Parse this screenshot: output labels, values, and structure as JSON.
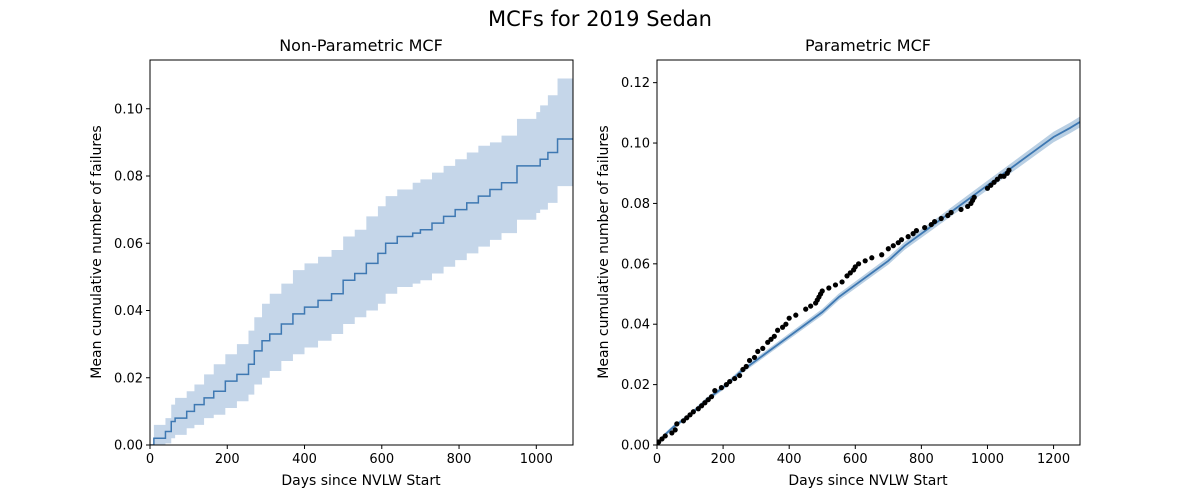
{
  "figure": {
    "title": "MCFs for 2019 Sedan"
  },
  "chart_data": [
    {
      "type": "line",
      "title": "Non-Parametric MCF",
      "xlabel": "Days since NVLW Start",
      "ylabel": "Mean cumulative number of failures",
      "xlim": [
        0,
        1095
      ],
      "ylim": [
        0,
        0.1145
      ],
      "xticks": [
        0,
        200,
        400,
        600,
        800,
        1000
      ],
      "xtick_labels": [
        "0",
        "200",
        "400",
        "600",
        "800",
        "1000"
      ],
      "yticks": [
        0,
        0.02,
        0.04,
        0.06,
        0.08,
        0.1
      ],
      "ytick_labels": [
        "0.00",
        "0.02",
        "0.04",
        "0.06",
        "0.08",
        "0.10"
      ],
      "grid": false,
      "colors": {
        "line": "#3e78b2",
        "band": "#c5d6e9"
      },
      "series": [
        {
          "style": "step",
          "x": [
            0,
            10,
            40,
            55,
            65,
            95,
            115,
            140,
            165,
            195,
            225,
            255,
            270,
            290,
            310,
            340,
            370,
            400,
            435,
            470,
            500,
            530,
            560,
            590,
            610,
            640,
            680,
            700,
            730,
            760,
            790,
            820,
            850,
            880,
            910,
            950,
            1000,
            1010,
            1030,
            1055,
            1095
          ],
          "y": [
            0,
            0.002,
            0.004,
            0.007,
            0.008,
            0.01,
            0.012,
            0.014,
            0.016,
            0.019,
            0.021,
            0.024,
            0.028,
            0.031,
            0.033,
            0.036,
            0.039,
            0.041,
            0.043,
            0.045,
            0.049,
            0.051,
            0.054,
            0.057,
            0.06,
            0.062,
            0.063,
            0.064,
            0.066,
            0.068,
            0.07,
            0.072,
            0.074,
            0.076,
            0.078,
            0.083,
            0.083,
            0.085,
            0.087,
            0.091,
            0.091
          ],
          "lower": [
            0,
            0,
            0.0005,
            0.002,
            0.003,
            0.005,
            0.006,
            0.008,
            0.009,
            0.011,
            0.013,
            0.015,
            0.018,
            0.02,
            0.022,
            0.025,
            0.027,
            0.029,
            0.031,
            0.033,
            0.036,
            0.038,
            0.04,
            0.042,
            0.045,
            0.047,
            0.048,
            0.049,
            0.051,
            0.053,
            0.055,
            0.057,
            0.059,
            0.061,
            0.063,
            0.067,
            0.069,
            0.07,
            0.072,
            0.077,
            0.077
          ],
          "upper": [
            0,
            0.006,
            0.008,
            0.012,
            0.014,
            0.016,
            0.018,
            0.021,
            0.024,
            0.027,
            0.03,
            0.034,
            0.038,
            0.042,
            0.045,
            0.048,
            0.052,
            0.054,
            0.056,
            0.058,
            0.062,
            0.064,
            0.068,
            0.071,
            0.074,
            0.076,
            0.078,
            0.079,
            0.081,
            0.083,
            0.085,
            0.087,
            0.089,
            0.09,
            0.092,
            0.097,
            0.099,
            0.101,
            0.104,
            0.109,
            0.109
          ]
        }
      ]
    },
    {
      "type": "line",
      "title": "Parametric MCF",
      "xlabel": "Days since NVLW Start",
      "ylabel": "Mean cumulative number of failures",
      "xlim": [
        0,
        1280
      ],
      "ylim": [
        0,
        0.1275
      ],
      "xticks": [
        0,
        200,
        400,
        600,
        800,
        1000,
        1200
      ],
      "xtick_labels": [
        "0",
        "200",
        "400",
        "600",
        "800",
        "1000",
        "1200"
      ],
      "yticks": [
        0,
        0.02,
        0.04,
        0.06,
        0.08,
        0.1,
        0.12
      ],
      "ytick_labels": [
        "0.00",
        "0.02",
        "0.04",
        "0.06",
        "0.08",
        "0.10",
        "0.12"
      ],
      "grid": false,
      "colors": {
        "line": "#3e78b2",
        "band": "#a8c3dc",
        "points": "#000000"
      },
      "series": [
        {
          "style": "line",
          "x": [
            0,
            20,
            50,
            100,
            150,
            200,
            250,
            300,
            350,
            400,
            450,
            500,
            550,
            600,
            650,
            700,
            750,
            800,
            850,
            900,
            950,
            1000,
            1050,
            1100,
            1150,
            1200,
            1250,
            1280
          ],
          "y": [
            0,
            0.003,
            0.006,
            0.01,
            0.015,
            0.019,
            0.024,
            0.028,
            0.032,
            0.036,
            0.04,
            0.044,
            0.049,
            0.053,
            0.057,
            0.061,
            0.066,
            0.07,
            0.074,
            0.078,
            0.082,
            0.086,
            0.09,
            0.094,
            0.098,
            0.102,
            0.105,
            0.107
          ]
        },
        {
          "style": "points",
          "x": [
            5,
            15,
            25,
            45,
            55,
            60,
            80,
            90,
            100,
            110,
            125,
            135,
            145,
            155,
            165,
            175,
            195,
            210,
            220,
            235,
            250,
            260,
            270,
            280,
            295,
            305,
            320,
            335,
            345,
            355,
            365,
            380,
            390,
            400,
            420,
            450,
            465,
            480,
            485,
            490,
            495,
            500,
            520,
            540,
            560,
            575,
            585,
            595,
            600,
            610,
            630,
            650,
            680,
            700,
            715,
            730,
            740,
            760,
            775,
            785,
            810,
            830,
            840,
            860,
            880,
            890,
            920,
            940,
            950,
            955,
            960,
            1000,
            1010,
            1020,
            1030,
            1040,
            1050,
            1060,
            1065
          ],
          "y": [
            0.001,
            0.002,
            0.003,
            0.004,
            0.005,
            0.007,
            0.008,
            0.009,
            0.01,
            0.011,
            0.012,
            0.013,
            0.014,
            0.015,
            0.016,
            0.018,
            0.019,
            0.02,
            0.021,
            0.022,
            0.023,
            0.025,
            0.026,
            0.028,
            0.029,
            0.031,
            0.032,
            0.034,
            0.035,
            0.036,
            0.038,
            0.039,
            0.04,
            0.042,
            0.043,
            0.045,
            0.046,
            0.047,
            0.048,
            0.049,
            0.05,
            0.051,
            0.052,
            0.053,
            0.054,
            0.056,
            0.057,
            0.058,
            0.059,
            0.06,
            0.061,
            0.062,
            0.063,
            0.065,
            0.066,
            0.067,
            0.068,
            0.069,
            0.07,
            0.071,
            0.072,
            0.073,
            0.074,
            0.075,
            0.076,
            0.077,
            0.078,
            0.079,
            0.08,
            0.081,
            0.082,
            0.085,
            0.086,
            0.087,
            0.088,
            0.089,
            0.089,
            0.09,
            0.091
          ]
        }
      ]
    }
  ]
}
